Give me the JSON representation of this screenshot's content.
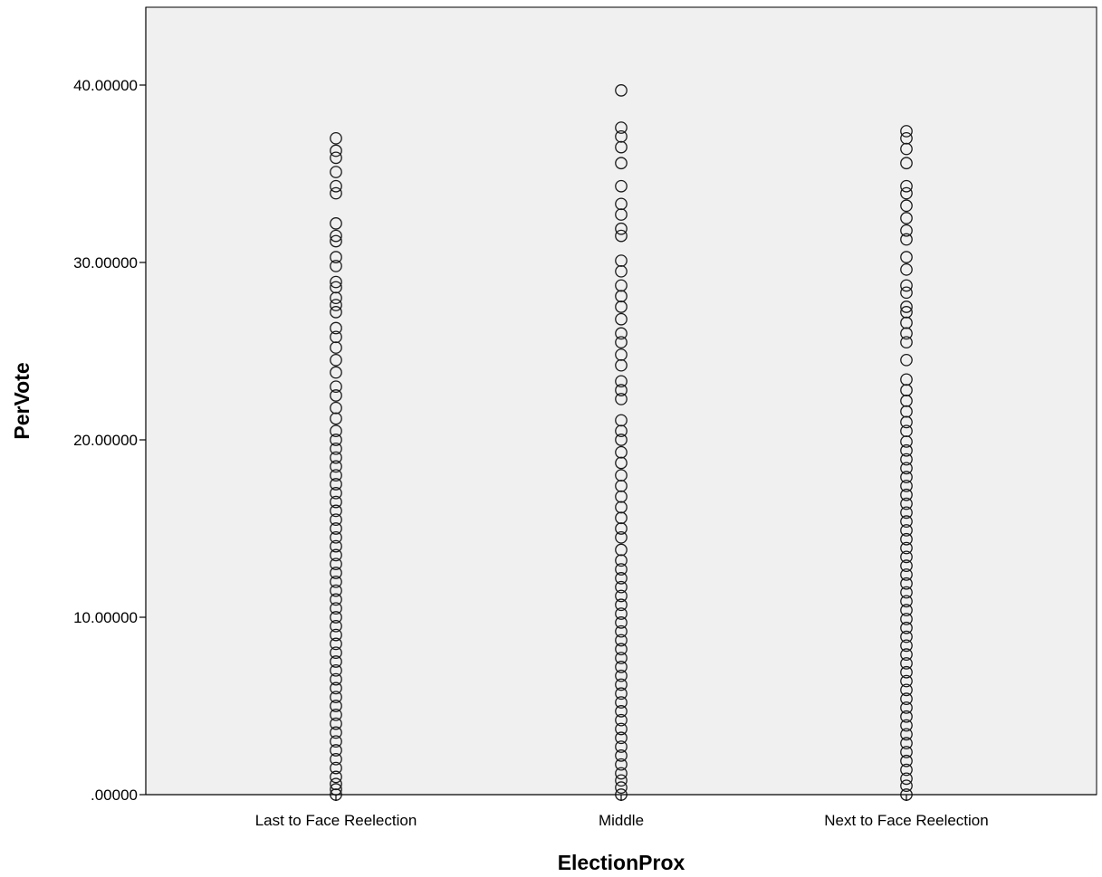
{
  "chart_data": {
    "type": "scatter",
    "title": "",
    "xlabel": "ElectionProx",
    "ylabel": "PerVote",
    "categories": [
      "Last to Face Reelection",
      "Middle",
      "Next to Face Reelection"
    ],
    "ylim": [
      0,
      44
    ],
    "yticks": [
      0,
      10,
      20,
      30,
      40
    ],
    "ytick_labels": [
      ".00000",
      "10.00000",
      "20.00000",
      "30.00000",
      "40.00000"
    ],
    "grid": false,
    "legend": "none",
    "colors": {
      "plot_bg": "#f0f0f0",
      "marker": "#1a1a1a",
      "axis": "#000000"
    },
    "series": [
      {
        "category": "Last to Face Reelection",
        "values": [
          0.0,
          0.3,
          0.6,
          1.0,
          1.5,
          2.0,
          2.5,
          3.0,
          3.5,
          4.0,
          4.5,
          5.0,
          5.5,
          6.0,
          6.5,
          7.0,
          7.5,
          8.0,
          8.5,
          9.0,
          9.5,
          10.0,
          10.5,
          11.0,
          11.5,
          12.0,
          12.5,
          13.0,
          13.5,
          14.0,
          14.5,
          15.0,
          15.5,
          16.0,
          16.5,
          17.0,
          17.5,
          18.0,
          18.5,
          19.0,
          19.5,
          20.0,
          20.5,
          21.2,
          21.8,
          22.5,
          23.0,
          23.8,
          24.5,
          25.2,
          25.8,
          26.3,
          27.2,
          27.6,
          28.0,
          28.6,
          28.9,
          29.8,
          30.3,
          31.2,
          31.5,
          32.2,
          33.9,
          34.3,
          35.1,
          35.9,
          36.3,
          37.0
        ]
      },
      {
        "category": "Middle",
        "values": [
          0.0,
          0.4,
          0.8,
          1.2,
          1.7,
          2.2,
          2.7,
          3.2,
          3.7,
          4.2,
          4.7,
          5.2,
          5.7,
          6.2,
          6.7,
          7.2,
          7.7,
          8.2,
          8.7,
          9.2,
          9.7,
          10.2,
          10.7,
          11.2,
          11.7,
          12.2,
          12.7,
          13.2,
          13.8,
          14.5,
          15.0,
          15.6,
          16.2,
          16.8,
          17.4,
          18.0,
          18.7,
          19.3,
          20.0,
          20.5,
          21.1,
          22.3,
          22.8,
          23.3,
          24.2,
          24.8,
          25.5,
          26.0,
          26.8,
          27.5,
          28.1,
          28.7,
          29.5,
          30.1,
          31.5,
          31.9,
          32.7,
          33.3,
          34.3,
          35.6,
          36.5,
          37.1,
          37.6,
          39.7
        ]
      },
      {
        "category": "Next to Face Reelection",
        "values": [
          0.0,
          0.5,
          0.9,
          1.4,
          1.9,
          2.4,
          2.9,
          3.4,
          3.9,
          4.4,
          4.9,
          5.4,
          5.9,
          6.4,
          6.9,
          7.4,
          7.9,
          8.4,
          8.9,
          9.4,
          9.9,
          10.4,
          10.9,
          11.4,
          11.9,
          12.4,
          12.9,
          13.4,
          13.9,
          14.4,
          14.9,
          15.4,
          15.9,
          16.4,
          16.9,
          17.4,
          17.9,
          18.4,
          18.9,
          19.4,
          19.9,
          20.5,
          21.0,
          21.6,
          22.2,
          22.8,
          23.4,
          24.5,
          25.5,
          26.0,
          26.6,
          27.2,
          27.5,
          28.3,
          28.7,
          29.6,
          30.3,
          31.3,
          31.8,
          32.5,
          33.2,
          33.9,
          34.3,
          35.6,
          36.4,
          37.0,
          37.4
        ]
      }
    ]
  }
}
